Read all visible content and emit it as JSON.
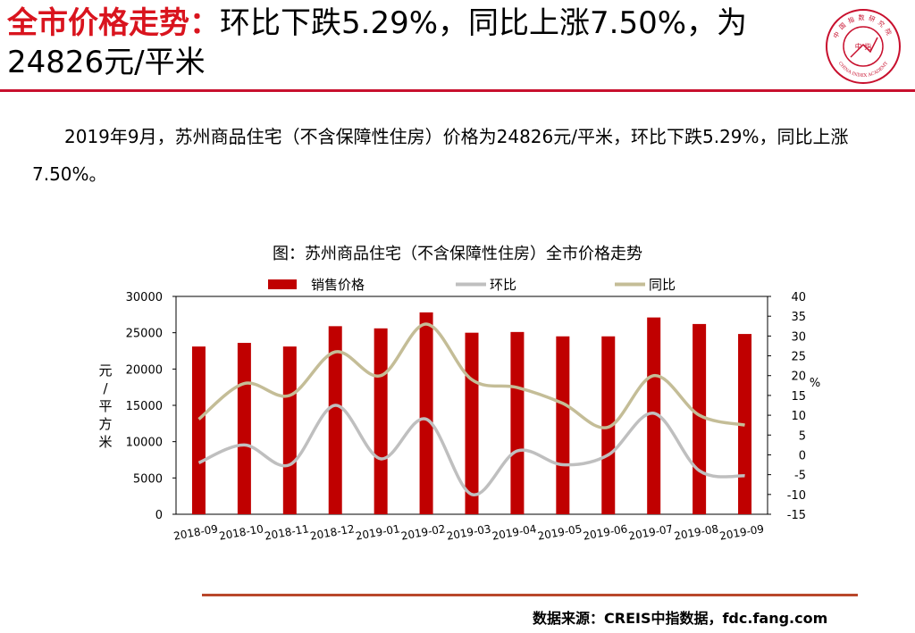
{
  "header": {
    "title_highlight": "全市价格走势：",
    "title_rest": "环比下跌5.29%，同比上涨7.50%，为24826元/平米"
  },
  "logo": {
    "top_text": "中国指数研究院",
    "center_text": "中 指",
    "bottom_text": "CHINA INDEX ACADEMY"
  },
  "body": {
    "paragraph": "2019年9月，苏州商品住宅（不含保障性住房）价格为24826元/平米，环比下跌5.29%，同比上涨7.50%。"
  },
  "chart_data": {
    "type": "bar",
    "title": "图：苏州商品住宅（不含保障性住房）全市价格走势",
    "categories": [
      "2018-09",
      "2018-10",
      "2018-11",
      "2018-12",
      "2019-01",
      "2019-02",
      "2019-03",
      "2019-04",
      "2019-05",
      "2019-06",
      "2019-07",
      "2019-08",
      "2019-09"
    ],
    "series": [
      {
        "name": "销售价格",
        "type": "bar",
        "axis": "left",
        "color": "#c00000",
        "values": [
          23100,
          23600,
          23100,
          25900,
          25600,
          27800,
          25000,
          25100,
          24500,
          24500,
          27100,
          26200,
          24826
        ]
      },
      {
        "name": "环比",
        "type": "line",
        "axis": "right",
        "color": "#bfbfbf",
        "values": [
          -2,
          2.5,
          -2.5,
          12.5,
          -1,
          9,
          -10,
          1,
          -2.5,
          0,
          10.5,
          -4,
          -5.29
        ]
      },
      {
        "name": "同比",
        "type": "line",
        "axis": "right",
        "color": "#c4bd97",
        "values": [
          9,
          18,
          15,
          26,
          20,
          33,
          19,
          17,
          13,
          7,
          20,
          10,
          7.5
        ]
      }
    ],
    "y_left": {
      "label": "元/平方米",
      "min": 0,
      "max": 30000,
      "ticks": [
        0,
        5000,
        10000,
        15000,
        20000,
        25000,
        30000
      ]
    },
    "y_right": {
      "label": "%",
      "min": -15,
      "max": 40,
      "ticks": [
        -15,
        -10,
        -5,
        0,
        5,
        10,
        15,
        20,
        25,
        30,
        35,
        40
      ]
    },
    "legend_position": "top",
    "grid": false
  },
  "footer": {
    "source": "数据来源：CREIS中指数据，fdc.fang.com"
  }
}
